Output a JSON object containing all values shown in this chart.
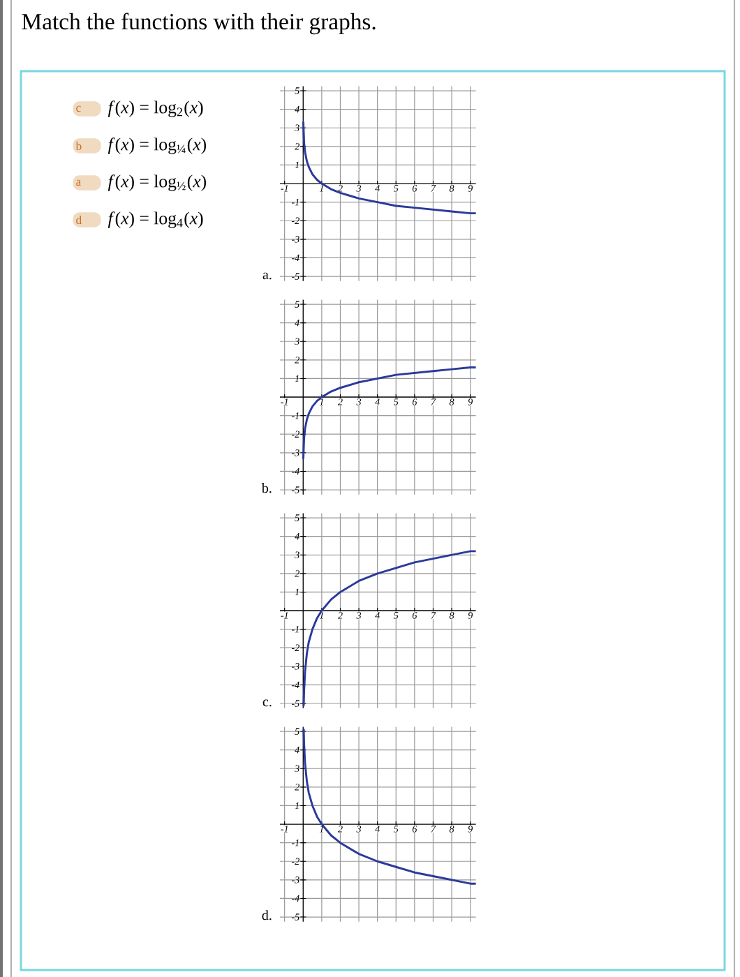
{
  "chart_data": [
    {
      "type": "other",
      "title": "Match the functions with their graphs.",
      "annotations": [
        "c",
        "*f*(*x*) = log$_{2}$(*x*)",
        "b",
        "*f*(*x*) = log$_{¼}$(*x*)",
        "a",
        "*f*(*x*) = log$_{½}$(*x*)",
        "d",
        "*f*(*x*) = log$_{4}$(*x*)"
      ]
    },
    {
      "type": "line",
      "title": "a.",
      "x": [
        0.01,
        0.05,
        0.1,
        0.2,
        0.3,
        0.5,
        0.75,
        1,
        1.5,
        2,
        3,
        4,
        5,
        6,
        7,
        8,
        9,
        9.3
      ],
      "values": [
        3.3,
        2.2,
        1.7,
        1.2,
        0.9,
        0.5,
        0.2,
        0,
        -0.3,
        -0.5,
        -0.8,
        -1,
        -1.2,
        -1.3,
        -1.4,
        -1.5,
        -1.6,
        -1.6
      ],
      "color": "#2b3a9a",
      "xlim": [
        -1.25,
        9.3
      ],
      "ylim": [
        -5.25,
        5.25
      ],
      "xticks": [
        -1,
        1,
        2,
        3,
        4,
        5,
        6,
        7,
        8,
        9
      ],
      "yticks": [
        -5,
        -4,
        -3,
        -2,
        -1,
        1,
        2,
        3,
        4,
        5
      ],
      "grid": true
    },
    {
      "type": "line",
      "title": "b.",
      "x": [
        0.01,
        0.05,
        0.1,
        0.2,
        0.3,
        0.5,
        0.75,
        1,
        1.5,
        2,
        3,
        4,
        5,
        6,
        7,
        8,
        9,
        9.3
      ],
      "values": [
        -3.3,
        -2.2,
        -1.7,
        -1.2,
        -0.9,
        -0.5,
        -0.2,
        0,
        0.3,
        0.5,
        0.8,
        1,
        1.2,
        1.3,
        1.4,
        1.5,
        1.6,
        1.6
      ],
      "color": "#2b3a9a",
      "xlim": [
        -1.25,
        9.3
      ],
      "ylim": [
        -5.25,
        5.25
      ],
      "xticks": [
        -1,
        1,
        2,
        3,
        4,
        5,
        6,
        7,
        8,
        9
      ],
      "yticks": [
        -5,
        -4,
        -3,
        -2,
        -1,
        1,
        2,
        3,
        4,
        5
      ],
      "grid": true
    },
    {
      "type": "line",
      "title": "c.",
      "x": [
        0.03,
        0.05,
        0.1,
        0.2,
        0.3,
        0.5,
        0.75,
        1,
        1.5,
        2,
        3,
        4,
        5,
        6,
        7,
        8,
        9,
        9.3
      ],
      "values": [
        -5.1,
        -4.3,
        -3.3,
        -2.3,
        -1.7,
        -1,
        -0.4,
        0,
        0.6,
        1,
        1.6,
        2,
        2.3,
        2.6,
        2.8,
        3,
        3.2,
        3.2
      ],
      "color": "#2b3a9a",
      "xlim": [
        -1.25,
        9.3
      ],
      "ylim": [
        -5.25,
        5.25
      ],
      "xticks": [
        -1,
        1,
        2,
        3,
        4,
        5,
        6,
        7,
        8,
        9
      ],
      "yticks": [
        -5,
        -4,
        -3,
        -2,
        -1,
        1,
        2,
        3,
        4,
        5
      ],
      "grid": true
    },
    {
      "type": "line",
      "title": "d.",
      "x": [
        0.03,
        0.05,
        0.1,
        0.2,
        0.3,
        0.5,
        0.75,
        1,
        1.5,
        2,
        3,
        4,
        5,
        6,
        7,
        8,
        9,
        9.3
      ],
      "values": [
        5.1,
        4.3,
        3.3,
        2.3,
        1.7,
        1,
        0.4,
        0,
        -0.6,
        -1,
        -1.6,
        -2,
        -2.3,
        -2.6,
        -2.8,
        -3,
        -3.2,
        -3.2
      ],
      "color": "#2b3a9a",
      "xlim": [
        -1.25,
        9.3
      ],
      "ylim": [
        -5.25,
        5.25
      ],
      "xticks": [
        -1,
        1,
        2,
        3,
        4,
        5,
        6,
        7,
        8,
        9
      ],
      "yticks": [
        -5,
        -4,
        -3,
        -2,
        -1,
        1,
        2,
        3,
        4,
        5
      ],
      "grid": true
    }
  ]
}
